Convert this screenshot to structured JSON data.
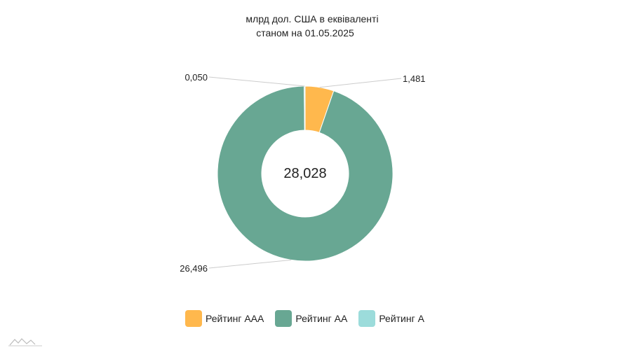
{
  "chart_data": {
    "type": "donut",
    "title_line1": "млрд дол. США в еквіваленті",
    "title_line2": "станом на 01.05.2025",
    "center_total": "28,028",
    "slices": [
      {
        "name": "Рейтинг ААА",
        "value": 1.481,
        "label": "1,481",
        "color": "#FFB84D"
      },
      {
        "name": "Рейтинг АА",
        "value": 26.496,
        "label": "26,496",
        "color": "#68A793"
      },
      {
        "name": "Рейтинг А",
        "value": 0.05,
        "label": "0,050",
        "color": "#9CDCDB"
      }
    ],
    "legend_position": "bottom"
  },
  "legend": {
    "items": [
      {
        "label": "Рейтинг ААА",
        "color": "#FFB84D"
      },
      {
        "label": "Рейтинг АА",
        "color": "#68A793"
      },
      {
        "label": "Рейтинг А",
        "color": "#9CDCDB"
      }
    ]
  }
}
